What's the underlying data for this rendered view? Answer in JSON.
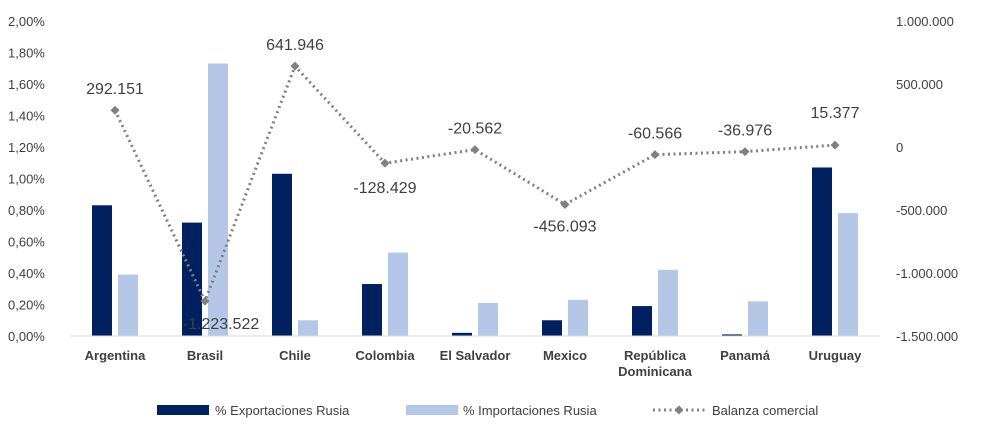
{
  "chart_data": {
    "type": "bar",
    "categories": [
      "Argentina",
      "Brasil",
      "Chile",
      "Colombia",
      "El Salvador",
      "Mexico",
      "República Dominicana",
      "Panamá",
      "Uruguay"
    ],
    "category_lines": [
      [
        "Argentina"
      ],
      [
        "Brasil"
      ],
      [
        "Chile"
      ],
      [
        "Colombia"
      ],
      [
        "El Salvador"
      ],
      [
        "Mexico"
      ],
      [
        "República",
        "Dominicana"
      ],
      [
        "Panamá"
      ],
      [
        "Uruguay"
      ]
    ],
    "series": [
      {
        "name": "% Exportaciones Rusia",
        "type": "bar",
        "axis": "left",
        "color": "#002060",
        "values": [
          0.83,
          0.72,
          1.03,
          0.33,
          0.02,
          0.1,
          0.19,
          0.01,
          1.07
        ]
      },
      {
        "name": "% Importaciones Rusia",
        "type": "bar",
        "axis": "left",
        "color": "#b4c7e7",
        "values": [
          0.39,
          1.73,
          0.1,
          0.53,
          0.21,
          0.23,
          0.42,
          0.22,
          0.78
        ]
      },
      {
        "name": "Balanza comercial",
        "type": "line",
        "axis": "right",
        "color": "#808080",
        "style": "dotted",
        "marker": "diamond",
        "values": [
          292151,
          -1223522,
          641946,
          -128429,
          -20562,
          -456093,
          -60566,
          -36976,
          15377
        ],
        "labels": [
          "292.151",
          "-1.223.522",
          "641.946",
          "-128.429",
          "-20.562",
          "-456.093",
          "-60.566",
          "-36.976",
          "15.377"
        ]
      }
    ],
    "y_left": {
      "min": 0,
      "max": 2.0,
      "ticks": [
        "0,00%",
        "0,20%",
        "0,40%",
        "0,60%",
        "0,80%",
        "1,00%",
        "1,20%",
        "1,40%",
        "1,60%",
        "1,80%",
        "2,00%"
      ]
    },
    "y_right": {
      "min": -1500000,
      "max": 1000000,
      "tick_values": [
        -1500000,
        -1000000,
        -500000,
        0,
        500000,
        1000000
      ],
      "ticks": [
        "-1.500.000",
        "-1.000.000",
        "-500.000",
        "0",
        "500.000",
        "1.000.000"
      ]
    },
    "grid": false,
    "legend_position": "bottom",
    "title": "",
    "xlabel": "",
    "ylabel": ""
  }
}
